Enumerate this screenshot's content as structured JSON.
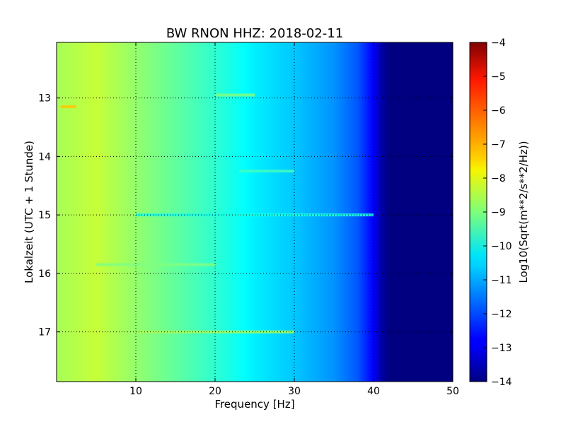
{
  "chart_data": {
    "type": "heatmap",
    "title": "BW RNON HHZ: 2018-02-11",
    "xlabel": "Frequency [Hz]",
    "ylabel": "Lokalzeit (UTC + 1 Stunde)",
    "colorbar_label": "Log10(Sqrt(m**2/s**2/Hz))",
    "xlim": [
      0,
      50
    ],
    "ylim": [
      17.85,
      12.05
    ],
    "y_axis_direction": "downward",
    "x_ticks": [
      10,
      20,
      30,
      40,
      50
    ],
    "y_ticks": [
      13,
      14,
      15,
      16,
      17
    ],
    "colorbar_range": [
      -14,
      -4
    ],
    "colorbar_ticks": [
      -4,
      -5,
      -6,
      -7,
      -8,
      -9,
      -10,
      -11,
      -12,
      -13,
      -14
    ],
    "colormap": "jet",
    "grid": true,
    "grid_style": "dotted",
    "spectral_profile": {
      "frequency_hz": [
        0,
        2,
        5,
        10,
        15,
        20,
        25,
        30,
        35,
        38,
        40,
        41,
        42,
        50
      ],
      "log_amplitude": [
        -8.6,
        -8.5,
        -8.3,
        -8.8,
        -9.3,
        -9.8,
        -10.4,
        -10.8,
        -11.3,
        -11.9,
        -12.8,
        -13.6,
        -14,
        -14
      ]
    },
    "features": [
      {
        "time": 13.15,
        "freq_range": [
          0.5,
          2.5
        ],
        "log_amplitude": -7.2
      },
      {
        "time": 12.95,
        "freq_range": [
          20,
          25
        ],
        "log_amplitude": -9.0
      },
      {
        "time": 14.25,
        "freq_range": [
          23,
          30
        ],
        "log_amplitude": -9.6
      },
      {
        "time": 15.0,
        "freq_range": [
          10,
          40
        ],
        "log_amplitude": -10.0
      },
      {
        "time": 17.0,
        "freq_range": [
          10,
          30
        ],
        "log_amplitude": -8.6
      },
      {
        "time": 15.85,
        "freq_range": [
          5,
          20
        ],
        "log_amplitude": -9.0
      }
    ]
  }
}
